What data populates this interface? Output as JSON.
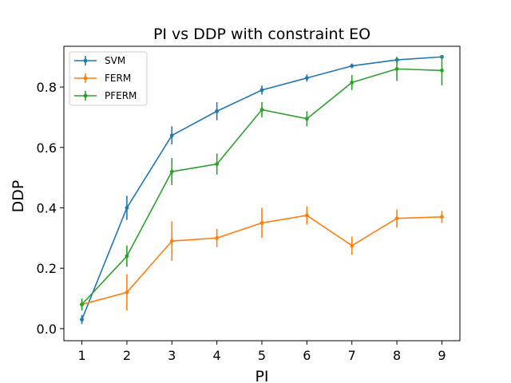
{
  "chart_data": {
    "type": "line",
    "title": "PI vs DDP with constraint EO",
    "xlabel": "PI",
    "ylabel": "DDP",
    "xlim": [
      0.6,
      9.4
    ],
    "ylim": [
      -0.04,
      0.935
    ],
    "x": [
      1,
      2,
      3,
      4,
      5,
      6,
      7,
      8,
      9
    ],
    "xticks": [
      1,
      2,
      3,
      4,
      5,
      6,
      7,
      8,
      9
    ],
    "yticks": [
      0.0,
      0.2,
      0.4,
      0.6,
      0.8
    ],
    "ytick_labels": [
      "0.0",
      "0.2",
      "0.4",
      "0.6",
      "0.8"
    ],
    "grid": false,
    "legend_position": "top-left",
    "series": [
      {
        "name": "SVM",
        "color": "#1f77b4",
        "values": [
          0.03,
          0.4,
          0.64,
          0.72,
          0.79,
          0.83,
          0.87,
          0.89,
          0.9
        ],
        "errors": [
          0.015,
          0.04,
          0.03,
          0.03,
          0.015,
          0.012,
          0.008,
          0.01,
          0.006
        ]
      },
      {
        "name": "FERM",
        "color": "#ff7f0e",
        "values": [
          0.08,
          0.12,
          0.29,
          0.3,
          0.35,
          0.375,
          0.275,
          0.365,
          0.37
        ],
        "errors": [
          0.015,
          0.06,
          0.065,
          0.03,
          0.05,
          0.03,
          0.03,
          0.03,
          0.02
        ]
      },
      {
        "name": "PFERM",
        "color": "#2ca02c",
        "values": [
          0.08,
          0.24,
          0.52,
          0.545,
          0.725,
          0.695,
          0.815,
          0.86,
          0.855
        ],
        "errors": [
          0.02,
          0.035,
          0.045,
          0.035,
          0.025,
          0.025,
          0.025,
          0.04,
          0.05
        ]
      }
    ]
  }
}
